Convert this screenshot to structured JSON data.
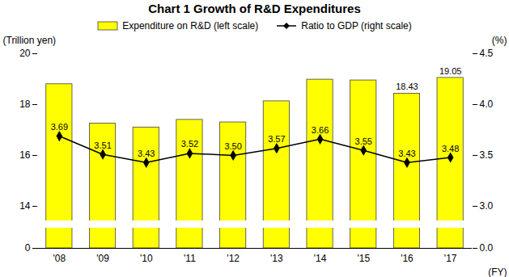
{
  "chart_data": {
    "type": "bar",
    "title": "Chart 1   Growth of R&D Expenditures",
    "categories": [
      "'08",
      "'09",
      "'10",
      "'11",
      "'12",
      "'13",
      "'14",
      "'15",
      "'16",
      "'17"
    ],
    "x_label": "(FY)",
    "y_label": "(Trillion yen)",
    "y2_label": "(%)",
    "ylim": [
      0,
      20
    ],
    "yticks": [
      0,
      14,
      16,
      18,
      20
    ],
    "y2lim": [
      0,
      4.5
    ],
    "y2ticks": [
      {
        "value": 0,
        "label": "0.0"
      },
      {
        "value": 3,
        "label": "3.0"
      },
      {
        "value": 3.5,
        "label": "3.5"
      },
      {
        "value": 4,
        "label": "4.0"
      },
      {
        "value": 4.5,
        "label": "4.5"
      }
    ],
    "legend": "top",
    "series": [
      {
        "name": "Expenditure on R&D (left scale)",
        "type": "bar",
        "color": "#ffff00",
        "values": [
          18.8,
          17.25,
          17.1,
          17.4,
          17.3,
          18.13,
          18.98,
          18.95,
          18.43,
          19.05
        ],
        "value_labels": [
          null,
          null,
          null,
          null,
          null,
          null,
          null,
          null,
          "18.43",
          "19.05"
        ]
      },
      {
        "name": "Ratio to GDP (right scale)",
        "type": "line",
        "color": "#000000",
        "marker": "diamond",
        "axis": "y2",
        "data_labels": true,
        "values": [
          3.69,
          3.51,
          3.43,
          3.52,
          3.5,
          3.57,
          3.66,
          3.55,
          3.43,
          3.48
        ],
        "value_labels": [
          "3.69",
          "3.51",
          "3.43",
          "3.52",
          "3.50",
          "3.57",
          "3.66",
          "3.55",
          "3.43",
          "3.48"
        ]
      }
    ]
  }
}
